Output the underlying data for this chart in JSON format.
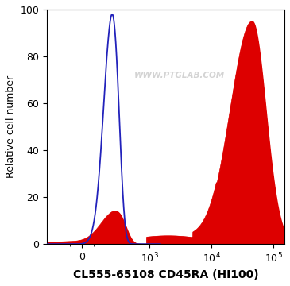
{
  "title": "CL555-65108 CD45RA (HI100)",
  "ylabel": "Relative cell number",
  "ylim": [
    0,
    100
  ],
  "yticks": [
    0,
    20,
    40,
    60,
    80,
    100
  ],
  "watermark": "WWW.PTGLAB.COM",
  "background_color": "#ffffff",
  "blue_line_color": "#2222bb",
  "red_fill_color": "#dd0000",
  "linthresh": 200,
  "linscale": 0.35
}
